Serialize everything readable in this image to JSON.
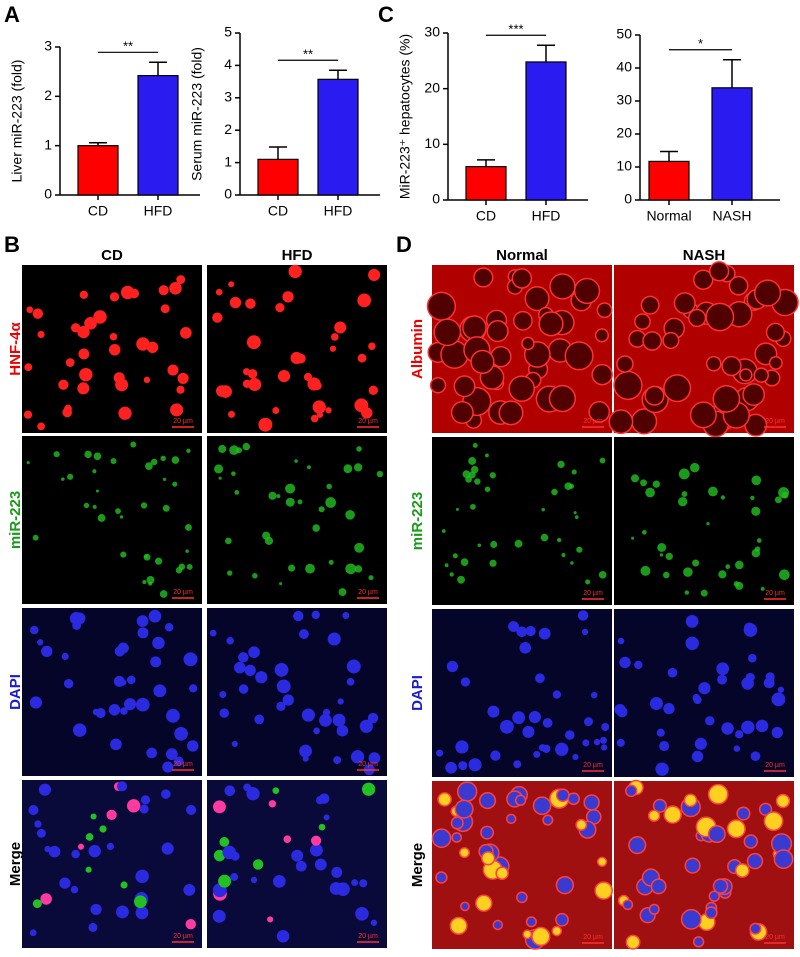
{
  "chart_data": [
    {
      "type": "bar",
      "ylabel": "Liver miR-223 (fold)",
      "categories": [
        "CD",
        "HFD"
      ],
      "values": [
        1.0,
        2.42
      ],
      "errors": [
        0.06,
        0.27
      ],
      "colors": [
        "#ff0000",
        "#2a1bf0"
      ],
      "ylim": [
        0,
        3
      ],
      "yticks": [
        0,
        1,
        2,
        3
      ],
      "annotation": "**"
    },
    {
      "type": "bar",
      "ylabel": "Serum miR-223 (fold)",
      "categories": [
        "CD",
        "HFD"
      ],
      "values": [
        1.1,
        3.57
      ],
      "errors": [
        0.38,
        0.28
      ],
      "colors": [
        "#ff0000",
        "#2a1bf0"
      ],
      "ylim": [
        0,
        5
      ],
      "yticks": [
        0,
        1,
        2,
        3,
        4,
        5
      ],
      "annotation": "**"
    },
    {
      "type": "bar",
      "ylabel": "MiR-223⁺ hepatocytes (%)",
      "categories": [
        "CD",
        "HFD"
      ],
      "values": [
        6.0,
        24.8
      ],
      "errors": [
        1.2,
        3.0
      ],
      "colors": [
        "#ff0000",
        "#2a1bf0"
      ],
      "ylim": [
        0,
        30
      ],
      "yticks": [
        0,
        10,
        20,
        30
      ],
      "annotation": "***"
    },
    {
      "type": "bar",
      "categories": [
        "Normal",
        "NASH"
      ],
      "values": [
        11.7,
        34.0
      ],
      "errors": [
        3.0,
        8.5
      ],
      "colors": [
        "#ff0000",
        "#2a1bf0"
      ],
      "ylim": [
        0,
        50
      ],
      "yticks": [
        0,
        10,
        20,
        30,
        40,
        50
      ],
      "annotation": "*"
    }
  ],
  "panel_labels": [
    "A",
    "B",
    "C",
    "D"
  ],
  "image_grids": [
    {
      "columns": [
        "CD",
        "HFD"
      ],
      "rows": [
        "HNF-4α",
        "miR-223",
        "DAPI",
        "Merge"
      ],
      "scale_bar": "20 µm"
    },
    {
      "columns": [
        "Normal",
        "NASH"
      ],
      "rows": [
        "Albumin",
        "miR-223",
        "DAPI",
        "Merge"
      ],
      "scale_bar": "20 µm"
    }
  ]
}
